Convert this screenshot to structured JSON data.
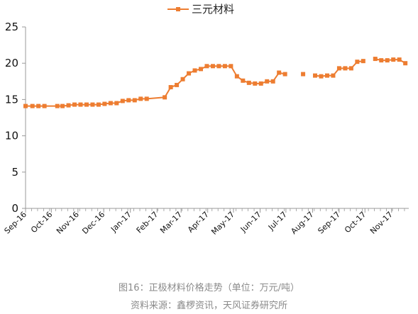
{
  "chart_data": {
    "type": "line",
    "ylim": [
      0,
      25
    ],
    "yticks": [
      0,
      5,
      10,
      15,
      20,
      25
    ],
    "x_tick_labels": [
      "Sep-16",
      "Oct-16",
      "Nov-16",
      "Dec-16",
      "Jan-17",
      "Feb-17",
      "Mar-17",
      "Apr-17",
      "May-17",
      "Jun-17",
      "Jul-17",
      "Aug-17",
      "Sep-17",
      "Oct-17",
      "Nov-17"
    ],
    "legend": "top-center",
    "grid": false,
    "series": [
      {
        "name": "三元材料",
        "color": "#ED7D31",
        "segments": [
          [
            {
              "x": "2016-09-01",
              "y": 14.1
            },
            {
              "x": "2016-09-09",
              "y": 14.1
            },
            {
              "x": "2016-09-16",
              "y": 14.1
            },
            {
              "x": "2016-09-23",
              "y": 14.1
            },
            {
              "x": "2016-10-08",
              "y": 14.1
            },
            {
              "x": "2016-10-14",
              "y": 14.1
            },
            {
              "x": "2016-10-21",
              "y": 14.2
            },
            {
              "x": "2016-10-28",
              "y": 14.3
            },
            {
              "x": "2016-11-04",
              "y": 14.3
            },
            {
              "x": "2016-11-11",
              "y": 14.3
            },
            {
              "x": "2016-11-18",
              "y": 14.3
            },
            {
              "x": "2016-11-25",
              "y": 14.3
            },
            {
              "x": "2016-12-02",
              "y": 14.4
            },
            {
              "x": "2016-12-09",
              "y": 14.5
            },
            {
              "x": "2016-12-16",
              "y": 14.5
            },
            {
              "x": "2016-12-23",
              "y": 14.8
            },
            {
              "x": "2016-12-30",
              "y": 14.9
            },
            {
              "x": "2017-01-06",
              "y": 14.9
            },
            {
              "x": "2017-01-13",
              "y": 15.1
            },
            {
              "x": "2017-01-20",
              "y": 15.1
            },
            {
              "x": "2017-02-10",
              "y": 15.3
            },
            {
              "x": "2017-02-17",
              "y": 16.7
            },
            {
              "x": "2017-02-24",
              "y": 17.0
            },
            {
              "x": "2017-03-03",
              "y": 17.8
            },
            {
              "x": "2017-03-10",
              "y": 18.6
            },
            {
              "x": "2017-03-17",
              "y": 19.0
            },
            {
              "x": "2017-03-24",
              "y": 19.2
            },
            {
              "x": "2017-03-31",
              "y": 19.6
            },
            {
              "x": "2017-04-07",
              "y": 19.6
            },
            {
              "x": "2017-04-14",
              "y": 19.6
            },
            {
              "x": "2017-04-21",
              "y": 19.6
            },
            {
              "x": "2017-04-28",
              "y": 19.6
            },
            {
              "x": "2017-05-05",
              "y": 18.2
            },
            {
              "x": "2017-05-12",
              "y": 17.6
            },
            {
              "x": "2017-05-19",
              "y": 17.3
            },
            {
              "x": "2017-05-26",
              "y": 17.2
            },
            {
              "x": "2017-06-02",
              "y": 17.2
            },
            {
              "x": "2017-06-09",
              "y": 17.5
            },
            {
              "x": "2017-06-16",
              "y": 17.5
            },
            {
              "x": "2017-06-23",
              "y": 18.7
            },
            {
              "x": "2017-06-30",
              "y": 18.5
            }
          ],
          [
            {
              "x": "2017-07-21",
              "y": 18.5
            }
          ],
          [
            {
              "x": "2017-08-04",
              "y": 18.3
            },
            {
              "x": "2017-08-11",
              "y": 18.2
            },
            {
              "x": "2017-08-18",
              "y": 18.3
            },
            {
              "x": "2017-08-25",
              "y": 18.3
            },
            {
              "x": "2017-09-01",
              "y": 19.3
            },
            {
              "x": "2017-09-08",
              "y": 19.3
            },
            {
              "x": "2017-09-15",
              "y": 19.3
            },
            {
              "x": "2017-09-22",
              "y": 20.2
            },
            {
              "x": "2017-09-29",
              "y": 20.3
            }
          ],
          [
            {
              "x": "2017-10-13",
              "y": 20.6
            },
            {
              "x": "2017-10-20",
              "y": 20.4
            },
            {
              "x": "2017-10-27",
              "y": 20.4
            },
            {
              "x": "2017-11-03",
              "y": 20.5
            },
            {
              "x": "2017-11-10",
              "y": 20.5
            },
            {
              "x": "2017-11-17",
              "y": 20.0
            }
          ]
        ]
      }
    ]
  },
  "caption": {
    "title": "图16：正极材料价格走势（单位：万元/吨）",
    "source": "资料来源：鑫椤资讯，天风证券研究所"
  },
  "colors": {
    "series": "#ED7D31",
    "axis": "#999999",
    "caption": "#8a8a8a"
  }
}
